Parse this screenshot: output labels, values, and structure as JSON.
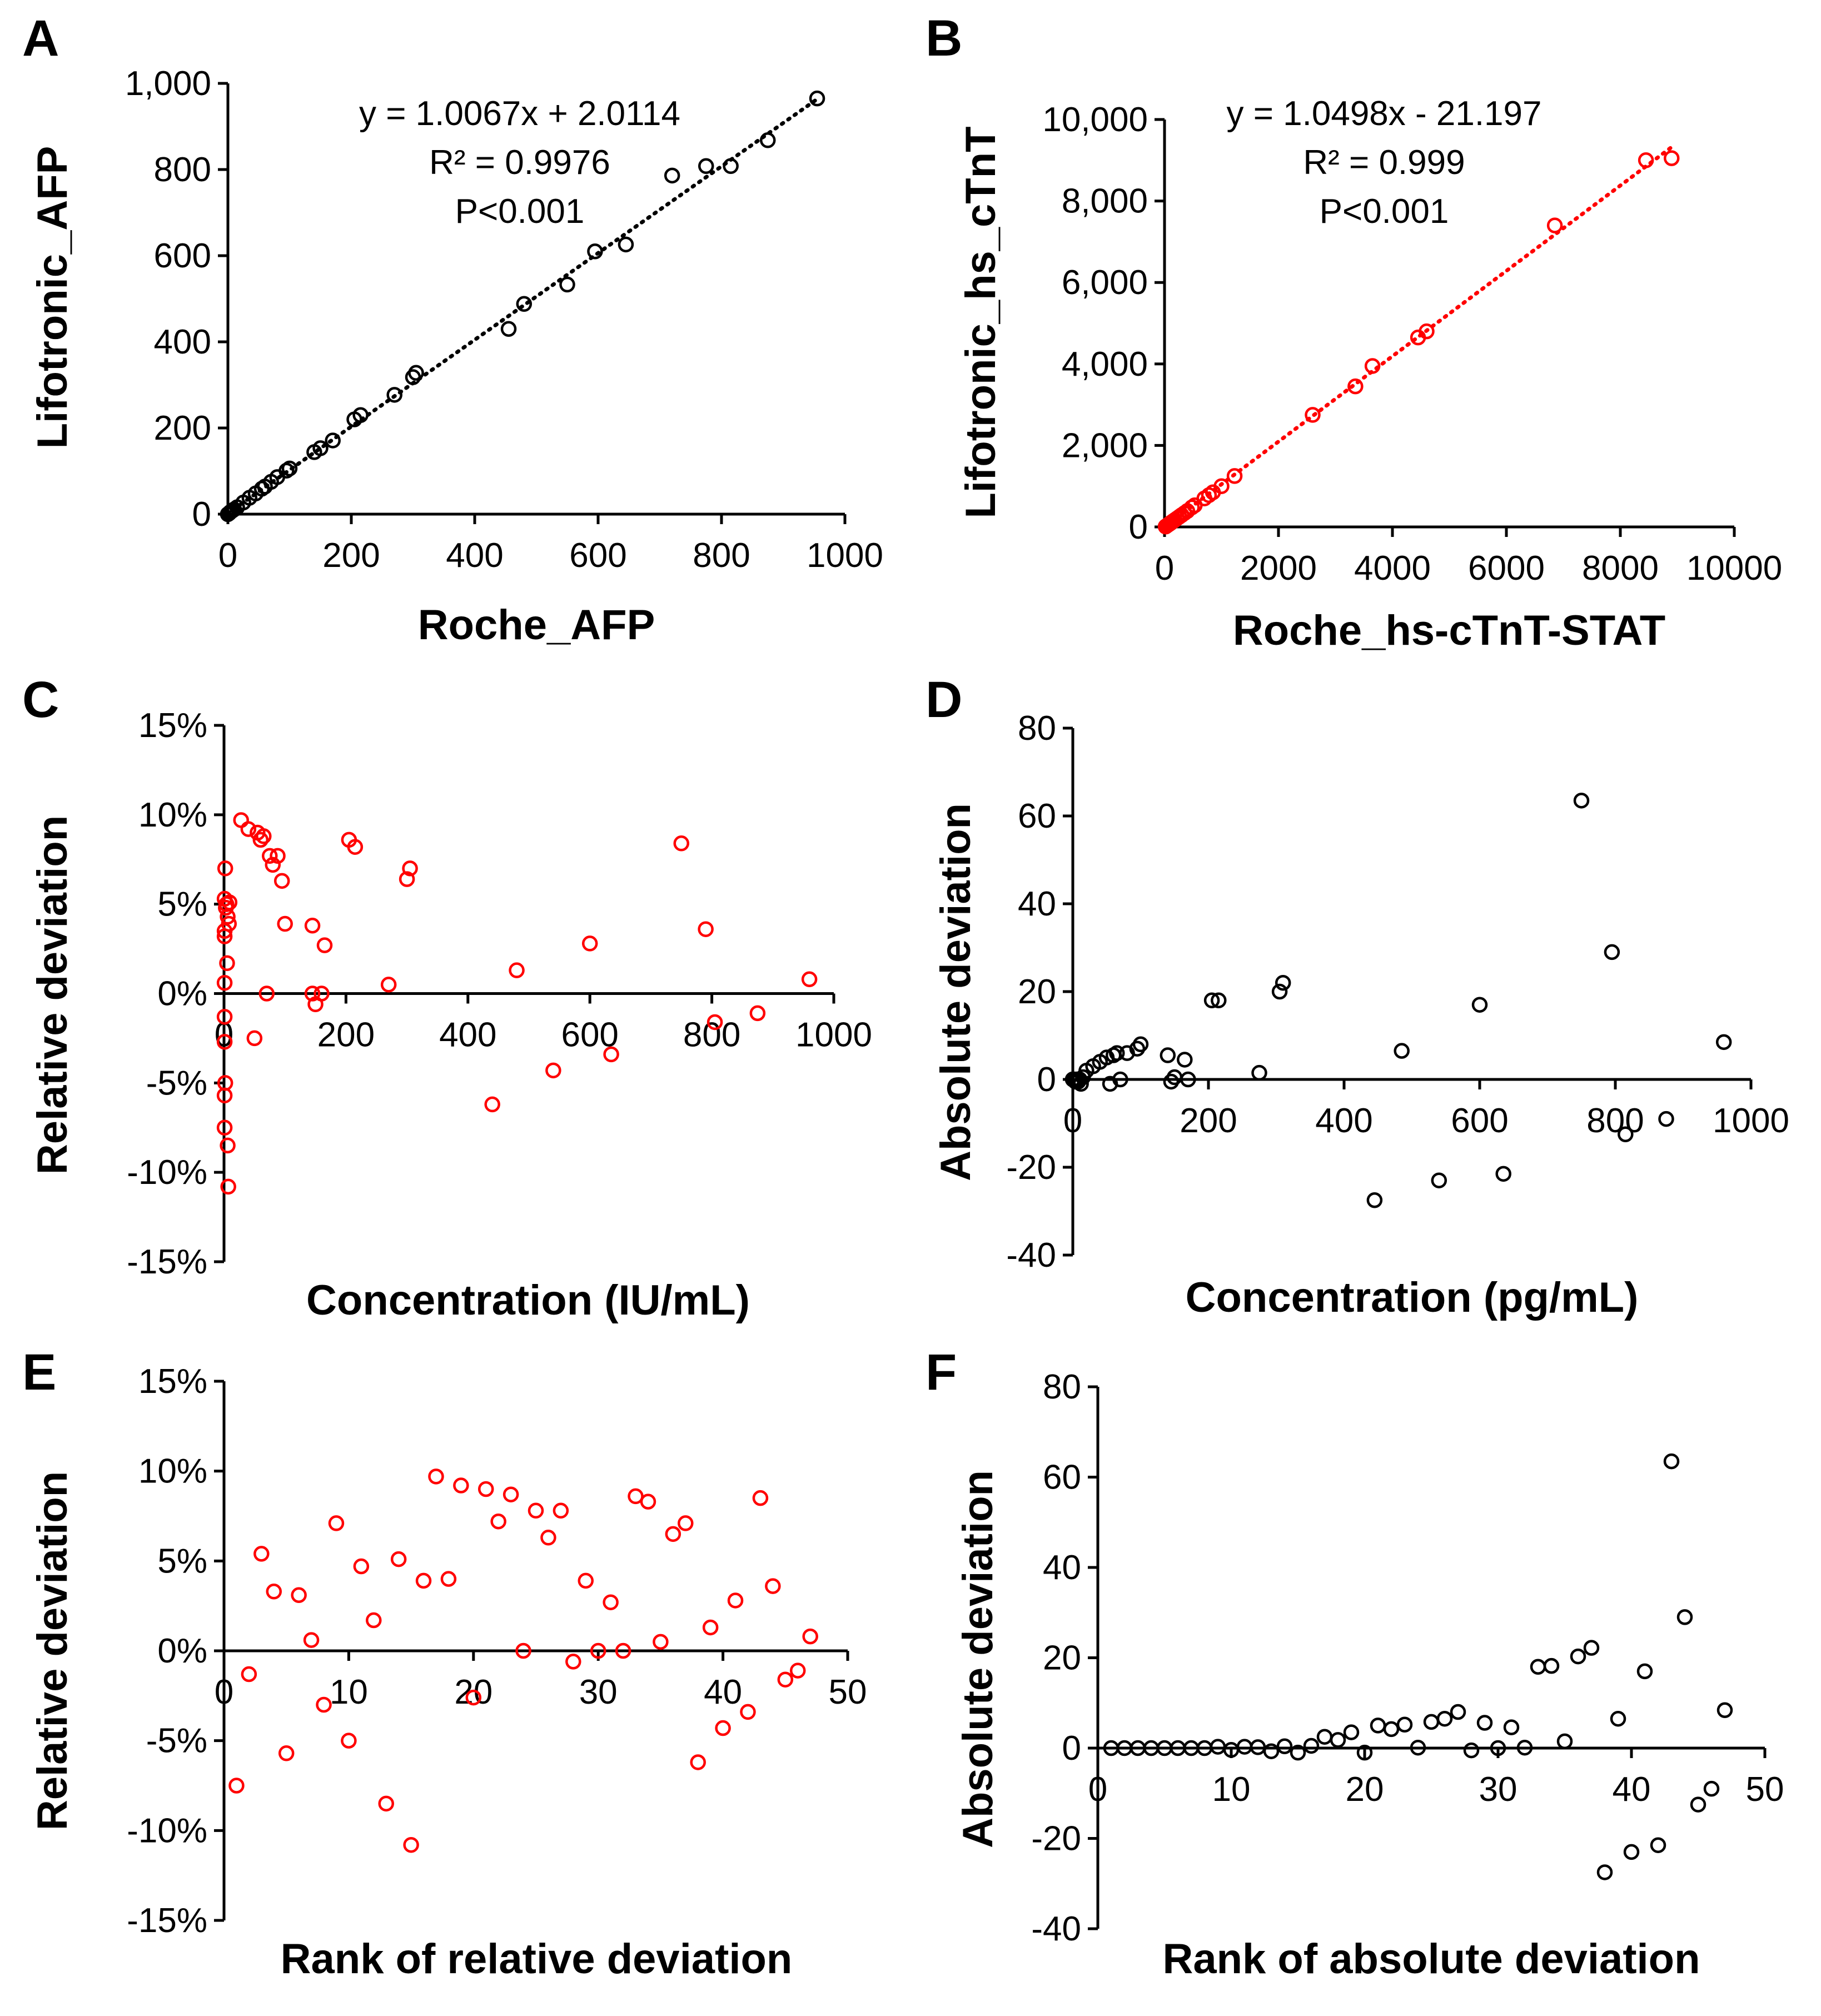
{
  "colors": {
    "black": "#000000",
    "red": "#ff0000"
  },
  "chart_data": [
    {
      "id": "A",
      "panel_label": "A",
      "type": "scatter",
      "color": "#000000",
      "title": "",
      "xlabel": "Roche_AFP",
      "ylabel": "Lifotronic_AFP",
      "xlim": [
        0,
        1000
      ],
      "ylim": [
        0,
        1000
      ],
      "xticks": [
        "0",
        "200",
        "400",
        "600",
        "800",
        "1000"
      ],
      "yticks": [
        "0",
        "200",
        "400",
        "600",
        "800",
        "1,000"
      ],
      "annotation": [
        "y = 1.0067x + 2.0114",
        "R² = 0.9976",
        "P<0.001"
      ],
      "trendline": {
        "slope": 1.0067,
        "intercept": 2.0114,
        "style": "dotted"
      },
      "x": [
        0,
        2,
        4,
        7,
        10,
        15,
        25,
        35,
        45,
        55,
        60,
        70,
        80,
        95,
        100,
        140,
        150,
        170,
        205,
        215,
        270,
        300,
        305,
        455,
        480,
        550,
        595,
        645,
        720,
        775,
        815,
        875,
        955
      ],
      "y": [
        0,
        2,
        5,
        8,
        11,
        16,
        27,
        38,
        48,
        59,
        64,
        75,
        86,
        101,
        106,
        144,
        153,
        171,
        220,
        230,
        277,
        318,
        328,
        430,
        488,
        533,
        610,
        626,
        786,
        808,
        808,
        868,
        965
      ]
    },
    {
      "id": "B",
      "panel_label": "B",
      "type": "scatter",
      "color": "#ff0000",
      "title": "",
      "xlabel": "Roche_hs-cTnT-STAT",
      "ylabel": "Lifotronic_hs_cTnT",
      "xlim": [
        0,
        10000
      ],
      "ylim": [
        0,
        10000
      ],
      "xticks": [
        "0",
        "2000",
        "4000",
        "6000",
        "8000",
        "10000"
      ],
      "yticks": [
        "0",
        "2,000",
        "4,000",
        "6,000",
        "8,000",
        "10,000"
      ],
      "annotation": [
        "y = 1.0498x - 21.197",
        "R² = 0.999",
        "P<0.001"
      ],
      "trendline": {
        "slope": 1.0498,
        "intercept": -21.197,
        "style": "dotted"
      },
      "x": [
        20,
        50,
        80,
        100,
        120,
        150,
        180,
        220,
        260,
        300,
        350,
        400,
        480,
        530,
        700,
        780,
        850,
        1000,
        1230,
        2600,
        3350,
        3650,
        4450,
        4600,
        6850,
        8450,
        8900
      ],
      "y": [
        10,
        40,
        70,
        90,
        110,
        140,
        170,
        210,
        250,
        290,
        340,
        390,
        480,
        530,
        700,
        780,
        850,
        1000,
        1250,
        2750,
        3450,
        3950,
        4650,
        4800,
        7400,
        9000,
        9050
      ]
    },
    {
      "id": "C",
      "panel_label": "C",
      "type": "scatter",
      "color": "#ff0000",
      "title": "",
      "xlabel": "Concentration (IU/mL)",
      "ylabel": "Relative deviation",
      "xlim": [
        0,
        1000
      ],
      "ylim": [
        -15,
        15
      ],
      "xticks": [
        "0",
        "200",
        "400",
        "600",
        "800",
        "1000"
      ],
      "yticks": [
        "-15%",
        "-10%",
        "-5%",
        "0%",
        "5%",
        "10%",
        "15%"
      ],
      "x": [
        1,
        1,
        1,
        1,
        1,
        1,
        1,
        1,
        2,
        2,
        3,
        4,
        5,
        6,
        6,
        7,
        8,
        9,
        28,
        40,
        55,
        60,
        65,
        75,
        80,
        88,
        95,
        100,
        50,
        70,
        145,
        150,
        160,
        165,
        145,
        205,
        215,
        270,
        300,
        305,
        440,
        480,
        540,
        600,
        635,
        750,
        790,
        805,
        875,
        960
      ],
      "y": [
        5.3,
        3.2,
        0.6,
        -1.3,
        -2.7,
        -5.7,
        -7.5,
        3.5,
        7.0,
        -5.0,
        4.8,
        5.0,
        1.7,
        4.3,
        -8.5,
        -10.8,
        3.9,
        5.1,
        9.7,
        9.2,
        9.0,
        8.6,
        8.8,
        7.7,
        7.2,
        7.7,
        6.3,
        3.9,
        -2.5,
        0.0,
        3.8,
        -0.6,
        0.0,
        2.7,
        0.0,
        8.6,
        8.2,
        0.5,
        6.4,
        7.0,
        -6.2,
        1.3,
        -4.3,
        2.8,
        -3.4,
        8.4,
        3.6,
        -1.6,
        -1.1,
        0.8
      ]
    },
    {
      "id": "D",
      "panel_label": "D",
      "type": "scatter",
      "color": "#000000",
      "title": "",
      "xlabel": "Concentration (pg/mL)",
      "ylabel": "Absolute deviation",
      "xlim": [
        0,
        1000
      ],
      "ylim": [
        -40,
        80
      ],
      "xticks": [
        "0",
        "200",
        "400",
        "600",
        "800",
        "1000"
      ],
      "yticks": [
        "-40",
        "-20",
        "0",
        "20",
        "40",
        "60",
        "80"
      ],
      "y_negative_tick_color": "#ff0000",
      "x": [
        0,
        2,
        4,
        6,
        8,
        10,
        12,
        15,
        20,
        30,
        40,
        50,
        55,
        60,
        65,
        70,
        80,
        95,
        100,
        140,
        145,
        150,
        165,
        170,
        205,
        215,
        275,
        305,
        310,
        445,
        485,
        540,
        600,
        635,
        750,
        795,
        815,
        875,
        960
      ],
      "y": [
        0,
        0,
        -0.5,
        0,
        -0.5,
        0,
        -1,
        0.5,
        2,
        3,
        4,
        5,
        -1,
        5.5,
        6,
        0,
        6,
        7,
        8,
        5.5,
        -0.5,
        0.5,
        4.5,
        0,
        18,
        18,
        1.5,
        20,
        22,
        -27.5,
        6.5,
        -23,
        17,
        -21.5,
        63.5,
        29,
        -12.5,
        -9,
        8.5
      ]
    },
    {
      "id": "E",
      "panel_label": "E",
      "type": "scatter",
      "color": "#ff0000",
      "title": "",
      "xlabel": "Rank of relative deviation",
      "ylabel": "Relative deviation",
      "xlim": [
        0,
        50
      ],
      "ylim": [
        -15,
        15
      ],
      "xticks": [
        "0",
        "10",
        "20",
        "30",
        "40",
        "50"
      ],
      "yticks": [
        "-15%",
        "-10%",
        "-5%",
        "0%",
        "5%",
        "10%",
        "15%"
      ],
      "x": [
        1,
        2,
        3,
        4,
        5,
        6,
        7,
        8,
        9,
        10,
        11,
        12,
        13,
        14,
        15,
        16,
        17,
        18,
        19,
        20,
        21,
        22,
        23,
        24,
        25,
        26,
        27,
        28,
        29,
        30,
        31,
        32,
        33,
        34,
        35,
        36,
        37,
        38,
        39,
        40,
        41,
        42,
        43,
        44,
        45,
        46,
        47
      ],
      "y": [
        -7.5,
        -1.3,
        5.4,
        3.3,
        -5.7,
        3.1,
        0.6,
        -3.0,
        7.1,
        -5.0,
        4.7,
        1.7,
        -8.5,
        5.1,
        -10.8,
        3.9,
        9.7,
        4.0,
        9.2,
        -2.6,
        9.0,
        7.2,
        8.7,
        0.0,
        7.8,
        6.3,
        7.8,
        -0.6,
        3.9,
        0.0,
        2.7,
        0.0,
        8.6,
        8.3,
        0.5,
        6.5,
        7.1,
        -6.2,
        1.3,
        -4.3,
        2.8,
        -3.4,
        8.5,
        3.6,
        -1.6,
        -1.1,
        0.8
      ]
    },
    {
      "id": "F",
      "panel_label": "F",
      "type": "scatter",
      "color": "#000000",
      "title": "",
      "xlabel": "Rank of absolute deviation",
      "ylabel": "Absolute deviation",
      "xlim": [
        0,
        50
      ],
      "ylim": [
        -40,
        80
      ],
      "xticks": [
        "0",
        "10",
        "20",
        "30",
        "40",
        "50"
      ],
      "yticks": [
        "-40",
        "-20",
        "0",
        "20",
        "40",
        "60",
        "80"
      ],
      "x": [
        1,
        2,
        3,
        4,
        5,
        6,
        7,
        8,
        9,
        10,
        11,
        12,
        13,
        14,
        15,
        16,
        17,
        18,
        19,
        20,
        21,
        22,
        23,
        24,
        25,
        26,
        27,
        28,
        29,
        30,
        31,
        32,
        33,
        34,
        35,
        36,
        37,
        38,
        39,
        40,
        41,
        42,
        43,
        44,
        45,
        46,
        47
      ],
      "y": [
        0,
        0,
        0,
        0,
        0,
        0,
        0,
        0,
        0.3,
        -0.4,
        0.3,
        0.2,
        -0.7,
        0.4,
        -1.0,
        0.5,
        2.5,
        1.8,
        3.5,
        -1.0,
        5.0,
        4.2,
        5.2,
        0.1,
        5.8,
        6.5,
        8.0,
        -0.5,
        5.6,
        0.0,
        4.6,
        0.1,
        18.0,
        18.2,
        1.5,
        20.3,
        22.2,
        -27.5,
        6.5,
        -23.0,
        17.0,
        -21.5,
        63.5,
        29.0,
        -12.5,
        -9.0,
        8.4
      ]
    }
  ]
}
